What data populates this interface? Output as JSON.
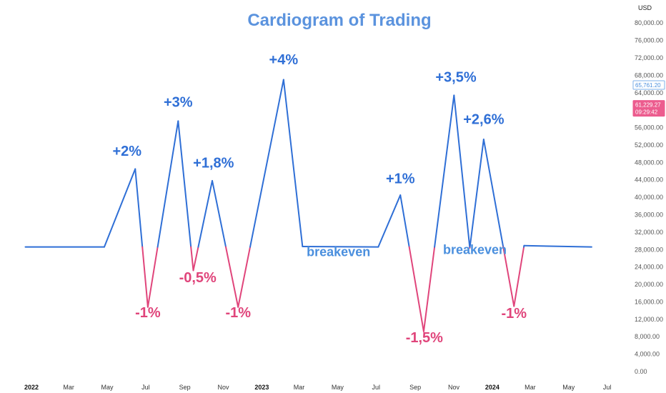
{
  "chart_data": {
    "type": "line",
    "title": "Cardiogram of Trading",
    "currency_label": "USD",
    "ylim": [
      0,
      82000
    ],
    "yticks": [
      "80,000.00",
      "76,000.00",
      "72,000.00",
      "68,000.00",
      "64,000.00",
      "60,000.00",
      "56,000.00",
      "52,000.00",
      "48,000.00",
      "44,000.00",
      "40,000.00",
      "36,000.00",
      "32,000.00",
      "28,000.00",
      "24,000.00",
      "20,000.00",
      "16,000.00",
      "12,000.00",
      "8,000.00",
      "4,000.00",
      "0.00"
    ],
    "ytick_values": [
      80000,
      76000,
      72000,
      68000,
      64000,
      60000,
      56000,
      52000,
      48000,
      44000,
      40000,
      36000,
      32000,
      28000,
      24000,
      20000,
      16000,
      12000,
      8000,
      4000,
      0
    ],
    "xlim": [
      "2022-01-01",
      "2024-07-15"
    ],
    "xticks": [
      {
        "label": "2022",
        "date": "2022-01-01",
        "year": true
      },
      {
        "label": "Mar",
        "date": "2022-03-01",
        "year": false
      },
      {
        "label": "May",
        "date": "2022-05-01",
        "year": false
      },
      {
        "label": "Jul",
        "date": "2022-07-01",
        "year": false
      },
      {
        "label": "Sep",
        "date": "2022-09-01",
        "year": false
      },
      {
        "label": "Nov",
        "date": "2022-11-01",
        "year": false
      },
      {
        "label": "2023",
        "date": "2023-01-01",
        "year": true
      },
      {
        "label": "Mar",
        "date": "2023-03-01",
        "year": false
      },
      {
        "label": "May",
        "date": "2023-05-01",
        "year": false
      },
      {
        "label": "Jul",
        "date": "2023-07-01",
        "year": false
      },
      {
        "label": "Sep",
        "date": "2023-09-01",
        "year": false
      },
      {
        "label": "Nov",
        "date": "2023-11-01",
        "year": false
      },
      {
        "label": "2024",
        "date": "2024-01-01",
        "year": true
      },
      {
        "label": "Mar",
        "date": "2024-03-01",
        "year": false
      },
      {
        "label": "May",
        "date": "2024-05-01",
        "year": false
      },
      {
        "label": "Jul",
        "date": "2024-07-01",
        "year": false
      }
    ],
    "price_badges": [
      {
        "lines": [
          "65,761.20"
        ],
        "value": 65761.2
      },
      {
        "lines": [
          "61,229.27",
          "09:29:42"
        ],
        "value": 61229.27
      }
    ],
    "baseline": 28600,
    "series": [
      {
        "points": [
          {
            "x": "2022-01-05",
            "y": 28600
          },
          {
            "x": "2022-05-10",
            "y": 28600
          },
          {
            "x": "2022-06-28",
            "y": 46500
          },
          {
            "x": "2022-07-18",
            "y": 14800
          },
          {
            "x": "2022-09-04",
            "y": 57500
          },
          {
            "x": "2022-09-28",
            "y": 23200
          },
          {
            "x": "2022-10-28",
            "y": 43800
          },
          {
            "x": "2022-12-08",
            "y": 14800
          },
          {
            "x": "2023-02-18",
            "y": 67000
          },
          {
            "x": "2023-03-20",
            "y": 28700
          },
          {
            "x": "2023-07-18",
            "y": 28600
          },
          {
            "x": "2023-08-22",
            "y": 40500
          },
          {
            "x": "2023-09-28",
            "y": 9200
          },
          {
            "x": "2023-11-15",
            "y": 63400
          },
          {
            "x": "2023-12-10",
            "y": 28400
          },
          {
            "x": "2024-01-01",
            "y": 53300
          },
          {
            "x": "2024-02-18",
            "y": 15000
          },
          {
            "x": "2024-03-05",
            "y": 28900
          },
          {
            "x": "2024-06-20",
            "y": 28600
          }
        ]
      }
    ],
    "annotations": [
      {
        "text": "+2%",
        "x": "2022-06-15",
        "y": 49500,
        "kind": "up"
      },
      {
        "text": "-1%",
        "x": "2022-07-18",
        "y": 12500,
        "kind": "down"
      },
      {
        "text": "+3%",
        "x": "2022-09-04",
        "y": 60800,
        "kind": "up"
      },
      {
        "text": "-0,5%",
        "x": "2022-10-05",
        "y": 20500,
        "kind": "down"
      },
      {
        "text": "+1,8%",
        "x": "2022-10-30",
        "y": 46800,
        "kind": "up"
      },
      {
        "text": "-1%",
        "x": "2022-12-08",
        "y": 12500,
        "kind": "down"
      },
      {
        "text": "+4%",
        "x": "2023-02-18",
        "y": 70500,
        "kind": "up"
      },
      {
        "text": "breakeven",
        "x": "2023-05-16",
        "y": 26500,
        "kind": "neutral"
      },
      {
        "text": "+1%",
        "x": "2023-08-22",
        "y": 43200,
        "kind": "up"
      },
      {
        "text": "-1,5%",
        "x": "2023-09-29",
        "y": 6700,
        "kind": "down"
      },
      {
        "text": "+3,5%",
        "x": "2023-11-18",
        "y": 66500,
        "kind": "up"
      },
      {
        "text": "+2,6%",
        "x": "2024-01-01",
        "y": 56800,
        "kind": "up"
      },
      {
        "text": "breakeven",
        "x": "2023-12-18",
        "y": 27000,
        "kind": "neutral"
      },
      {
        "text": "-1%",
        "x": "2024-02-18",
        "y": 12300,
        "kind": "down"
      }
    ],
    "colors": {
      "up": "#2f6fd6",
      "down": "#e0457b",
      "neutral": "#4a8fde",
      "title": "#5b93de",
      "badge_primary_text": "#4a8fde",
      "badge_primary_border": "#7fb0e8",
      "badge_secondary_bg": "#ec5c8e",
      "axis_text": "#555555"
    }
  }
}
